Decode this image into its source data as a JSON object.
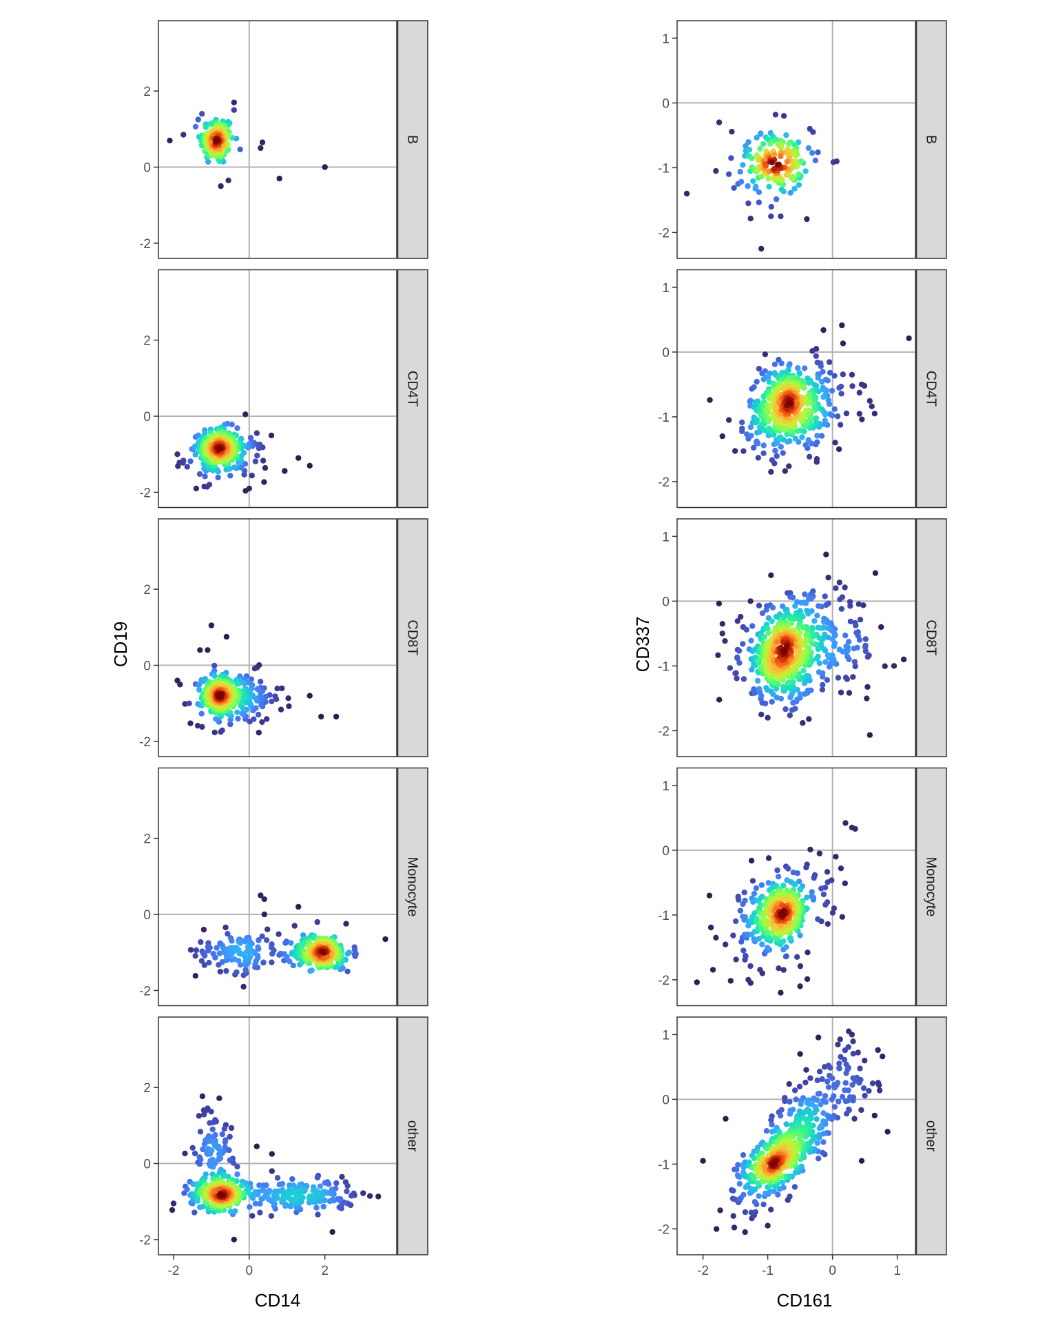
{
  "chart_data": [
    {
      "type": "scatter",
      "title": "",
      "xlabel": "CD14",
      "ylabel": "CD19",
      "xlim": [
        -2.4,
        3.9
      ],
      "ylim": [
        -2.4,
        3.85
      ],
      "xticks": [
        -2,
        0,
        2
      ],
      "yticks": [
        -2,
        0,
        2
      ],
      "reference_lines": {
        "x": 0,
        "y": 0
      },
      "color": "point density (turbo colormap)",
      "facets": [
        {
          "label": "B",
          "clusters": [
            {
              "cx": -0.85,
              "cy": 0.7,
              "sx": 0.22,
              "sy": 0.32,
              "n": 150,
              "rho": 0
            }
          ],
          "outliers": [
            [
              -2.1,
              0.7
            ],
            [
              0.3,
              0.5
            ],
            [
              0.35,
              0.65
            ],
            [
              0.8,
              -0.3
            ],
            [
              2.0,
              0.0
            ],
            [
              -0.75,
              -0.5
            ],
            [
              -0.55,
              -0.35
            ],
            [
              -0.4,
              1.7
            ],
            [
              -0.4,
              1.5
            ],
            [
              -1.35,
              1.25
            ],
            [
              -1.25,
              1.4
            ]
          ]
        },
        {
          "label": "CD4T",
          "clusters": [
            {
              "cx": -0.8,
              "cy": -0.8,
              "sx": 0.25,
              "sy": 0.25,
              "n": 220,
              "rho": 0
            },
            {
              "cx": -0.6,
              "cy": -1.1,
              "sx": 0.55,
              "sy": 0.3,
              "n": 120,
              "rho": 0
            }
          ],
          "outliers": [
            [
              1.6,
              -1.3
            ],
            [
              1.3,
              -1.1
            ],
            [
              -1.9,
              -1.0
            ],
            [
              -1.4,
              -1.9
            ],
            [
              0.0,
              -1.9
            ],
            [
              -0.1,
              0.05
            ]
          ]
        },
        {
          "label": "CD8T",
          "clusters": [
            {
              "cx": -0.8,
              "cy": -0.8,
              "sx": 0.22,
              "sy": 0.25,
              "n": 220,
              "rho": 0
            },
            {
              "cx": -0.3,
              "cy": -0.85,
              "sx": 0.6,
              "sy": 0.35,
              "n": 150,
              "rho": 0
            }
          ],
          "outliers": [
            [
              2.3,
              -1.35
            ],
            [
              1.9,
              -1.35
            ],
            [
              -1.0,
              1.05
            ],
            [
              -0.6,
              0.75
            ],
            [
              -1.3,
              0.4
            ],
            [
              -1.1,
              0.4
            ],
            [
              1.6,
              -0.8
            ],
            [
              -1.9,
              -0.4
            ],
            [
              -0.75,
              -1.75
            ]
          ]
        },
        {
          "label": "Monocyte",
          "clusters": [
            {
              "cx": 1.9,
              "cy": -1.0,
              "sx": 0.4,
              "sy": 0.22,
              "n": 260,
              "rho": 0
            },
            {
              "cx": -0.3,
              "cy": -0.95,
              "sx": 0.55,
              "sy": 0.28,
              "n": 110,
              "rho": 0
            }
          ],
          "outliers": [
            [
              0.3,
              0.5
            ],
            [
              0.4,
              0.4
            ],
            [
              0.4,
              0.0
            ],
            [
              1.3,
              0.2
            ],
            [
              -0.15,
              -1.9
            ],
            [
              2.6,
              -1.5
            ],
            [
              3.6,
              -0.65
            ],
            [
              -1.2,
              -0.4
            ],
            [
              1.8,
              -0.2
            ],
            [
              1.2,
              -0.3
            ],
            [
              2.8,
              -1.1
            ]
          ]
        },
        {
          "label": "other",
          "clusters": [
            {
              "cx": -0.75,
              "cy": -0.8,
              "sx": 0.4,
              "sy": 0.2,
              "n": 260,
              "rho": 0
            },
            {
              "cx": 1.4,
              "cy": -0.85,
              "sx": 0.7,
              "sy": 0.2,
              "n": 170,
              "rho": 0
            },
            {
              "cx": -0.95,
              "cy": 0.4,
              "sx": 0.25,
              "sy": 0.55,
              "n": 90,
              "rho": 0
            }
          ],
          "outliers": [
            [
              -2.0,
              -1.05
            ],
            [
              2.2,
              -1.8
            ],
            [
              -0.4,
              -2.0
            ],
            [
              0.6,
              0.25
            ],
            [
              0.2,
              0.45
            ],
            [
              2.7,
              -0.85
            ],
            [
              2.6,
              -1.05
            ],
            [
              -1.2,
              1.4
            ],
            [
              -1.1,
              1.45
            ],
            [
              0.6,
              -0.2
            ]
          ]
        }
      ]
    },
    {
      "type": "scatter",
      "title": "",
      "xlabel": "CD161",
      "ylabel": "CD337",
      "xlim": [
        -2.4,
        1.28
      ],
      "ylim": [
        -2.4,
        1.27
      ],
      "xticks": [
        -2,
        -1,
        0,
        1
      ],
      "yticks": [
        -2,
        -1,
        0,
        1
      ],
      "reference_lines": {
        "x": 0,
        "y": 0
      },
      "color": "point density (turbo colormap)",
      "facets": [
        {
          "label": "B",
          "clusters": [
            {
              "cx": -0.9,
              "cy": -0.9,
              "sx": 0.22,
              "sy": 0.25,
              "n": 110,
              "rho": 0
            },
            {
              "cx": -0.85,
              "cy": -1.0,
              "sx": 0.35,
              "sy": 0.3,
              "n": 60,
              "rho": 0
            }
          ],
          "outliers": [
            [
              -2.25,
              -1.4
            ],
            [
              -1.75,
              -0.3
            ],
            [
              -1.1,
              -2.25
            ],
            [
              -0.75,
              -0.2
            ],
            [
              -0.35,
              -0.4
            ],
            [
              -0.3,
              -0.45
            ],
            [
              -1.8,
              -1.05
            ],
            [
              -1.6,
              -1.1
            ],
            [
              -0.95,
              -1.75
            ],
            [
              -0.8,
              -1.75
            ],
            [
              -1.3,
              -1.55
            ]
          ]
        },
        {
          "label": "CD4T",
          "clusters": [
            {
              "cx": -0.7,
              "cy": -0.85,
              "sx": 0.3,
              "sy": 0.32,
              "n": 360,
              "rho": 0.15
            },
            {
              "cx": -0.45,
              "cy": -0.8,
              "sx": 0.45,
              "sy": 0.4,
              "n": 120,
              "rho": 0.1
            }
          ],
          "outliers": [
            [
              -1.7,
              -1.3
            ],
            [
              -1.6,
              -1.05
            ],
            [
              0.65,
              -0.95
            ],
            [
              0.45,
              -0.5
            ],
            [
              0.1,
              -1.5
            ],
            [
              -0.95,
              -1.85
            ],
            [
              -0.25,
              0.05
            ],
            [
              0.3,
              -0.35
            ]
          ]
        },
        {
          "label": "CD8T",
          "clusters": [
            {
              "cx": -0.75,
              "cy": -0.8,
              "sx": 0.33,
              "sy": 0.36,
              "n": 420,
              "rho": 0.1
            },
            {
              "cx": -0.25,
              "cy": -0.7,
              "sx": 0.5,
              "sy": 0.4,
              "n": 160,
              "rho": 0
            }
          ],
          "outliers": [
            [
              -0.1,
              0.72
            ],
            [
              0.05,
              0.2
            ],
            [
              -0.95,
              0.4
            ],
            [
              -1.7,
              -0.35
            ],
            [
              -1.7,
              -0.5
            ],
            [
              1.1,
              -0.9
            ],
            [
              0.95,
              -1.0
            ],
            [
              0.75,
              -0.4
            ],
            [
              -1.1,
              -1.75
            ],
            [
              -1.0,
              -1.8
            ]
          ]
        },
        {
          "label": "Monocyte",
          "clusters": [
            {
              "cx": -0.8,
              "cy": -1.0,
              "sx": 0.22,
              "sy": 0.25,
              "n": 250,
              "rho": 0.1
            },
            {
              "cx": -0.85,
              "cy": -1.0,
              "sx": 0.45,
              "sy": 0.45,
              "n": 110,
              "rho": 0.6
            }
          ],
          "outliers": [
            [
              0.2,
              0.42
            ],
            [
              0.3,
              0.35
            ],
            [
              0.35,
              0.33
            ],
            [
              0.05,
              -0.1
            ],
            [
              0.13,
              -0.28
            ],
            [
              0.15,
              -1.03
            ],
            [
              -0.2,
              -0.05
            ],
            [
              -1.8,
              -1.35
            ],
            [
              -1.3,
              -2.0
            ],
            [
              -0.8,
              -2.2
            ],
            [
              -0.5,
              -2.1
            ],
            [
              -1.9,
              -0.7
            ]
          ]
        },
        {
          "label": "other",
          "clusters": [
            {
              "cx": -0.85,
              "cy": -0.95,
              "sx": 0.28,
              "sy": 0.3,
              "n": 300,
              "rho": 0.7
            },
            {
              "cx": -0.6,
              "cy": -0.6,
              "sx": 0.45,
              "sy": 0.5,
              "n": 180,
              "rho": 0.75
            },
            {
              "cx": 0.0,
              "cy": 0.1,
              "sx": 0.35,
              "sy": 0.35,
              "n": 80,
              "rho": 0.3
            }
          ],
          "outliers": [
            [
              -2.0,
              -0.95
            ],
            [
              -1.0,
              -1.95
            ],
            [
              0.3,
              1.0
            ],
            [
              0.25,
              1.05
            ],
            [
              -0.5,
              0.7
            ],
            [
              -1.65,
              -0.3
            ],
            [
              0.85,
              -0.5
            ],
            [
              0.65,
              -0.25
            ],
            [
              0.45,
              -0.95
            ],
            [
              -1.35,
              -2.05
            ]
          ]
        }
      ]
    }
  ],
  "axes": {
    "left": {
      "xlabel": "CD14",
      "ylabel": "CD19",
      "xticks": [
        "-2",
        "0",
        "2"
      ],
      "yticks": [
        "-2",
        "0",
        "2"
      ]
    },
    "right": {
      "xlabel": "CD161",
      "ylabel": "CD337",
      "xticks": [
        "-2",
        "-1",
        "0",
        "1"
      ],
      "yticks": [
        "-2",
        "-1",
        "0",
        "1"
      ]
    }
  },
  "facet_labels": [
    "B",
    "CD4T",
    "CD8T",
    "Monocyte",
    "other"
  ],
  "colors": {
    "strip_fill": "#d9d9d9",
    "panel_border": "#333333",
    "reference_line": "#b3b3b3",
    "palette": "turbo"
  }
}
